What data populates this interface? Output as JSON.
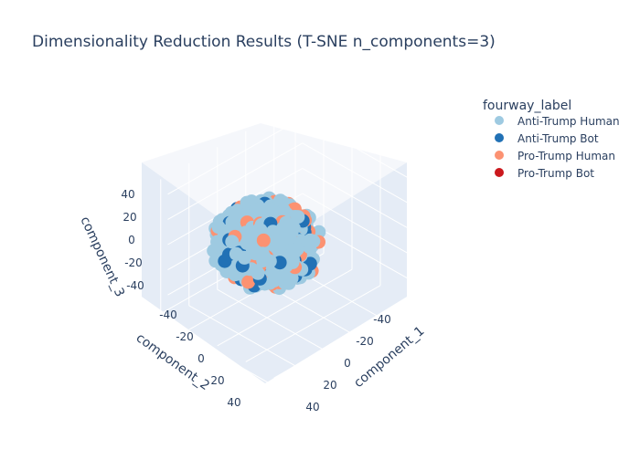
{
  "chart_data": {
    "type": "scatter",
    "mode": "3d",
    "title": "Dimensionality Reduction Results (T-SNE n_components=3)",
    "legend": {
      "title": "fourway_label",
      "placement": "top-right",
      "entries": [
        {
          "name": "Anti-Trump Human",
          "color": "#9ecae1"
        },
        {
          "name": "Anti-Trump Bot",
          "color": "#2171b5"
        },
        {
          "name": "Pro-Trump Human",
          "color": "#fc9272"
        },
        {
          "name": "Pro-Trump Bot",
          "color": "#cb181d"
        }
      ]
    },
    "axes": {
      "x": {
        "label": "component_1",
        "range": [
          -55,
          55
        ],
        "ticks": [
          -40,
          -20,
          0,
          20,
          40
        ]
      },
      "y": {
        "label": "component_2",
        "range": [
          -55,
          55
        ],
        "ticks": [
          -40,
          -20,
          0,
          20,
          40
        ]
      },
      "z": {
        "label": "component_3",
        "range": [
          -55,
          55
        ],
        "ticks": [
          -40,
          -20,
          0,
          20,
          40
        ]
      }
    },
    "grid": true,
    "point_cloud": {
      "shape": "roughly spherical cluster centered at origin",
      "radius_approx": 50,
      "counts": {
        "Anti-Trump Human": 1100,
        "Anti-Trump Bot": 120,
        "Pro-Trump Human": 170,
        "Pro-Trump Bot": 0
      }
    }
  }
}
